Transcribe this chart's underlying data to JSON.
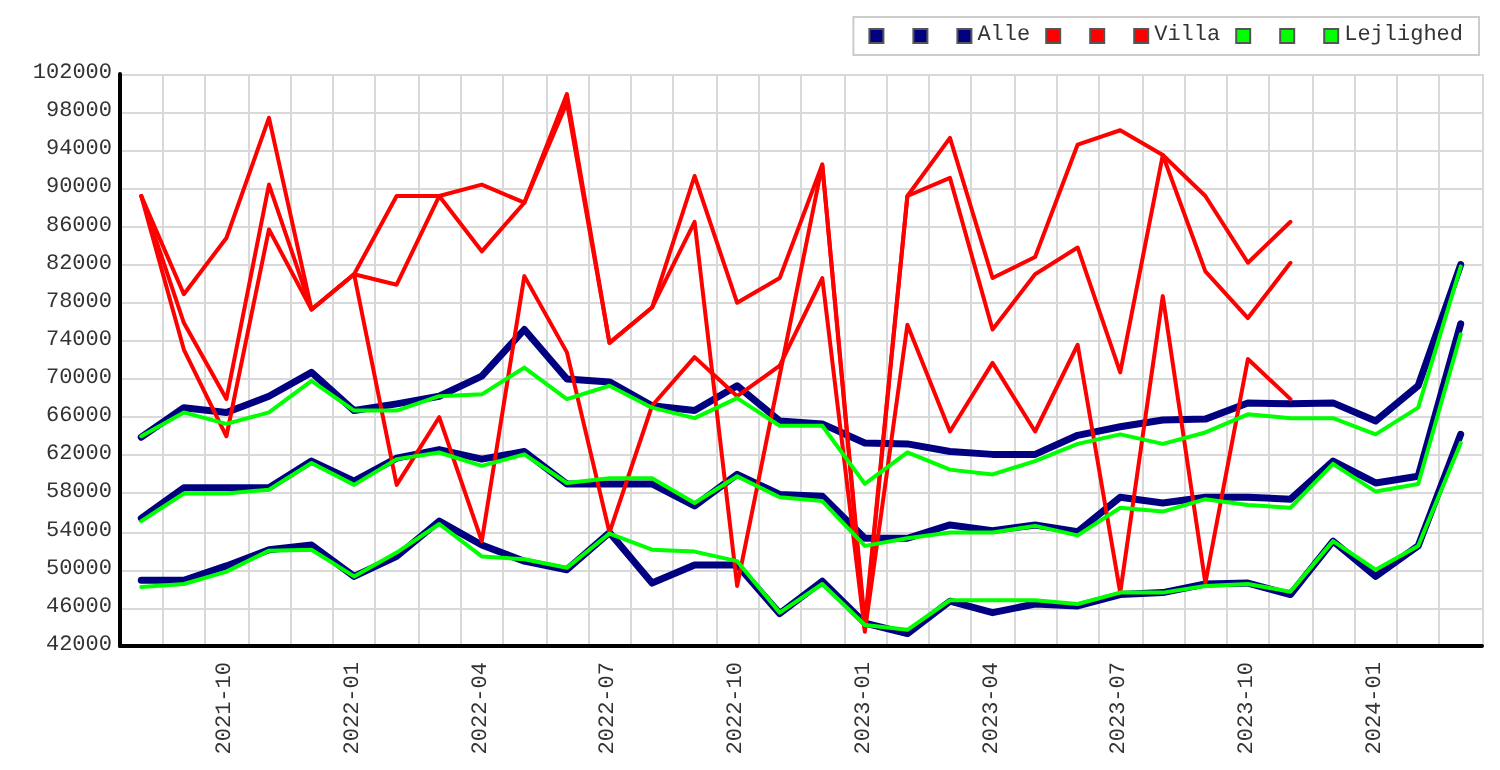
{
  "chart_data": {
    "type": "line",
    "categories": [
      null,
      null,
      "2021-10",
      null,
      null,
      "2022-01",
      null,
      null,
      "2022-04",
      null,
      null,
      "2022-07",
      null,
      null,
      "2022-10",
      null,
      null,
      "2023-01",
      null,
      null,
      "2023-04",
      null,
      null,
      "2023-07",
      null,
      null,
      "2023-10",
      null,
      null,
      "2024-01",
      null,
      null
    ],
    "series": [
      {
        "color": "#000080",
        "values": [
          63900,
          67000,
          66500,
          68200,
          70700,
          66700,
          67400,
          68200,
          70300,
          75200,
          70000,
          69700,
          67200,
          66700,
          69300,
          65600,
          65300,
          63300,
          63200,
          62400,
          62100,
          62100,
          64100,
          65000,
          65700,
          65800,
          67500,
          67400,
          67500,
          65600,
          69300,
          82000
        ]
      },
      {
        "color": "#000080",
        "values": [
          55400,
          58600,
          58600,
          58600,
          61400,
          59300,
          61700,
          62600,
          61600,
          62400,
          59000,
          59000,
          59000,
          56700,
          60000,
          57900,
          57700,
          53300,
          53300,
          54700,
          54100,
          54700,
          54000,
          57600,
          57000,
          57600,
          57600,
          57400,
          61400,
          59100,
          59800,
          75800
        ]
      },
      {
        "name": "Alle",
        "color": "#000080",
        "values": [
          48900,
          48900,
          50400,
          52100,
          52600,
          49300,
          51400,
          55100,
          52600,
          50900,
          50000,
          53900,
          48600,
          50500,
          50500,
          45400,
          48800,
          44400,
          43300,
          46700,
          45500,
          46400,
          46200,
          47400,
          47600,
          48500,
          48600,
          47400,
          53000,
          49300,
          52500,
          64200
        ]
      },
      {
        "color": "#ff0000",
        "values": [
          89200,
          78900,
          84800,
          97400,
          77300,
          81000,
          89200,
          89200,
          90400,
          88500,
          99900,
          73800,
          77500,
          91300,
          78000,
          80600,
          92500,
          44400,
          89200,
          95300,
          80600,
          82800,
          94600,
          96100,
          93500,
          89200,
          82200,
          86500,
          null,
          null,
          null,
          null
        ]
      },
      {
        "color": "#ff0000",
        "values": [
          89200,
          75900,
          67900,
          90400,
          77300,
          81000,
          79900,
          89200,
          83400,
          88500,
          99000,
          73800,
          77500,
          86500,
          48300,
          70400,
          92500,
          43800,
          89200,
          91100,
          75200,
          81000,
          83800,
          70700,
          93500,
          81300,
          76400,
          82200,
          null,
          null,
          null,
          null
        ]
      },
      {
        "name": "Villa",
        "color": "#ff0000",
        "values": [
          89200,
          73100,
          64000,
          85700,
          77300,
          81000,
          58900,
          66000,
          53000,
          80800,
          72800,
          53900,
          67200,
          72300,
          68200,
          71400,
          80600,
          43500,
          75700,
          64500,
          71700,
          64500,
          73600,
          47600,
          78700,
          48600,
          72100,
          67900,
          null,
          null,
          null,
          null
        ]
      },
      {
        "color": "#00ff00",
        "values": [
          64000,
          66500,
          65300,
          66500,
          69800,
          66700,
          66700,
          68200,
          68400,
          71200,
          67900,
          69300,
          67000,
          65900,
          68000,
          65100,
          65100,
          59000,
          62300,
          60500,
          60000,
          61400,
          63200,
          64200,
          63200,
          64400,
          66300,
          65900,
          65900,
          64200,
          67000,
          81800
        ]
      },
      {
        "color": "#00ff00",
        "values": [
          55100,
          58000,
          58000,
          58400,
          61200,
          58900,
          61600,
          62300,
          60900,
          62100,
          59100,
          59600,
          59600,
          57000,
          59800,
          57600,
          57200,
          52500,
          53300,
          53900,
          53900,
          54600,
          53600,
          56500,
          56100,
          57400,
          56800,
          56500,
          61100,
          58200,
          59000,
          74700
        ]
      },
      {
        "name": "Lejlighed",
        "color": "#00ff00",
        "values": [
          48200,
          48500,
          49800,
          52000,
          52100,
          49300,
          51800,
          54800,
          51400,
          51100,
          50200,
          53800,
          52100,
          51900,
          50900,
          45500,
          48500,
          44200,
          43700,
          46800,
          46800,
          46800,
          46400,
          47600,
          47600,
          48300,
          48500,
          47700,
          53000,
          50000,
          52500,
          63300
        ]
      }
    ],
    "ylim": [
      42000,
      102000
    ],
    "yticks": [
      42000,
      46000,
      50000,
      54000,
      58000,
      62000,
      66000,
      70000,
      74000,
      78000,
      82000,
      86000,
      90000,
      94000,
      98000,
      102000
    ],
    "grid": true,
    "legend": "top right",
    "marker": "none",
    "line_style": "solid"
  }
}
